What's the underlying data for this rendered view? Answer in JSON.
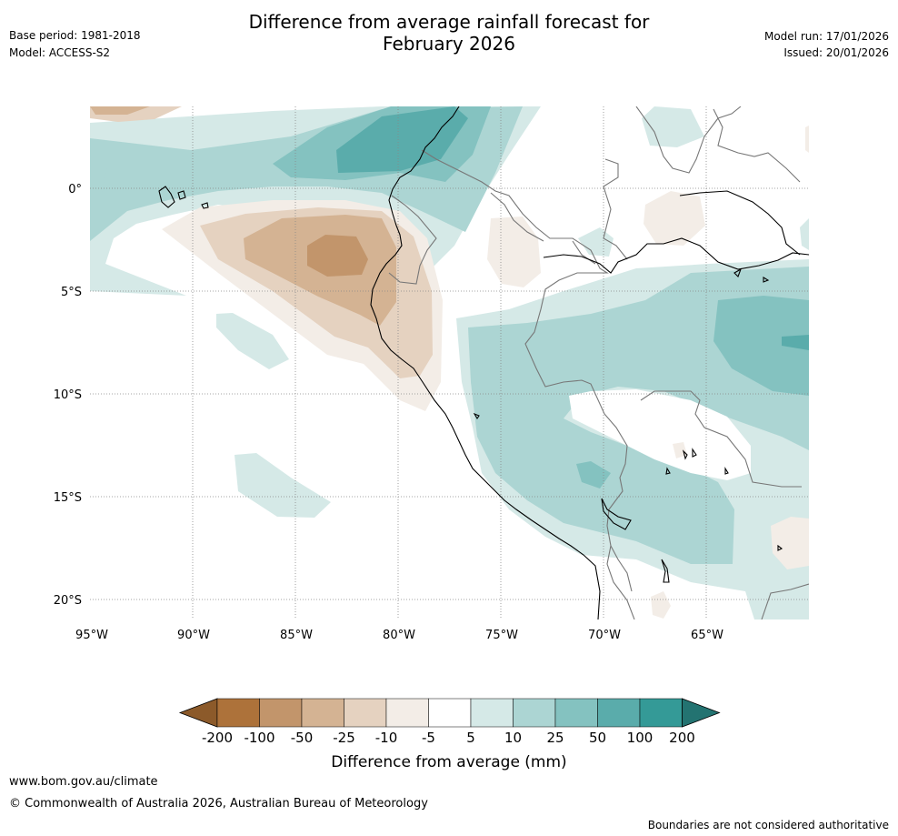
{
  "title": {
    "line1": "Difference from average rainfall forecast for",
    "line2": "February 2026"
  },
  "meta_left": {
    "base_period": "Base period: 1981-2018",
    "model": "Model: ACCESS-S2"
  },
  "meta_right": {
    "model_run": "Model run: 17/01/2026",
    "issued": "Issued: 20/01/2026"
  },
  "map": {
    "lat_labels": [
      "0°",
      "5°S",
      "10°S",
      "15°S",
      "20°S"
    ],
    "lon_labels": [
      "95°W",
      "90°W",
      "85°W",
      "80°W",
      "75°W",
      "70°W",
      "65°W"
    ]
  },
  "colorbar": {
    "ticks": [
      "-200",
      "-100",
      "-50",
      "-25",
      "-10",
      "-5",
      "5",
      "10",
      "25",
      "50",
      "100",
      "200"
    ],
    "colors": [
      "#8c5a2a",
      "#ad723a",
      "#c2956b",
      "#d4b393",
      "#e5d2c0",
      "#f3ede7",
      "#ffffff",
      "#d5e9e7",
      "#acd5d3",
      "#84c2c0",
      "#5aacab",
      "#349a97",
      "#237371"
    ],
    "title": "Difference from average (mm)"
  },
  "footer": {
    "url": "www.bom.gov.au/climate",
    "copyright": "© Commonwealth of Australia 2026, Australian Bureau of Meteorology",
    "disclaimer": "Boundaries are not considered authoritative"
  }
}
